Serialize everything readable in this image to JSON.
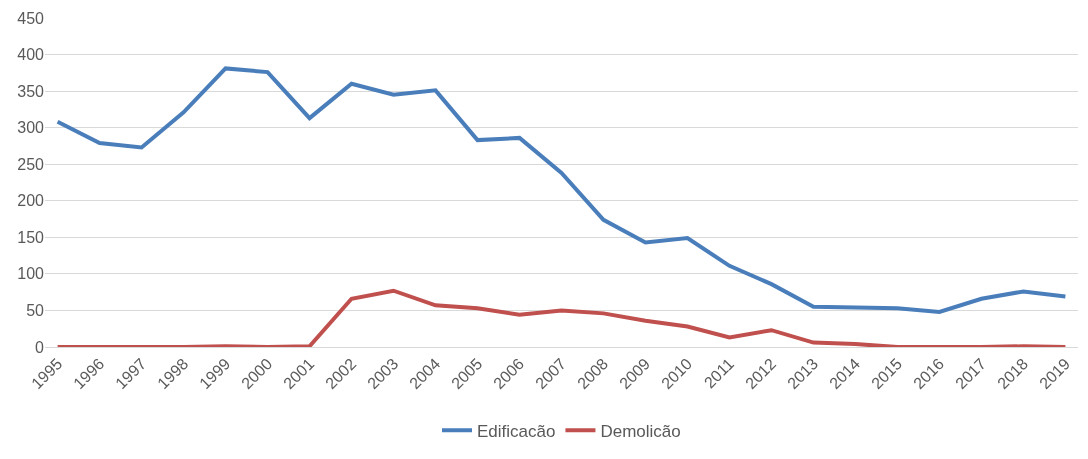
{
  "chart_data": {
    "type": "line",
    "categories": [
      "1995",
      "1996",
      "1997",
      "1998",
      "1999",
      "2000",
      "2001",
      "2002",
      "2003",
      "2004",
      "2005",
      "2006",
      "2007",
      "2008",
      "2009",
      "2010",
      "2011",
      "2012",
      "2013",
      "2014",
      "2015",
      "2016",
      "2017",
      "2018",
      "2019"
    ],
    "series": [
      {
        "name": "Edificacão",
        "color": "#4a7ebb",
        "values": [
          308,
          279,
          273,
          321,
          381,
          376,
          313,
          360,
          345,
          351,
          283,
          286,
          238,
          174,
          143,
          149,
          111,
          86,
          55,
          54,
          53,
          48,
          66,
          76,
          69
        ]
      },
      {
        "name": "Demolicão",
        "color": "#c0504d",
        "values": [
          0,
          0,
          0,
          0,
          1,
          0,
          1,
          66,
          77,
          57,
          53,
          44,
          50,
          46,
          36,
          28,
          13,
          23,
          6,
          4,
          0,
          0,
          0,
          1,
          0
        ]
      }
    ],
    "ylim": [
      0,
      450
    ],
    "yticks": [
      0,
      50,
      100,
      150,
      200,
      250,
      300,
      350,
      400,
      450
    ],
    "grid": "y",
    "legend": "bottom",
    "marker": "none",
    "line_style": "solid"
  }
}
